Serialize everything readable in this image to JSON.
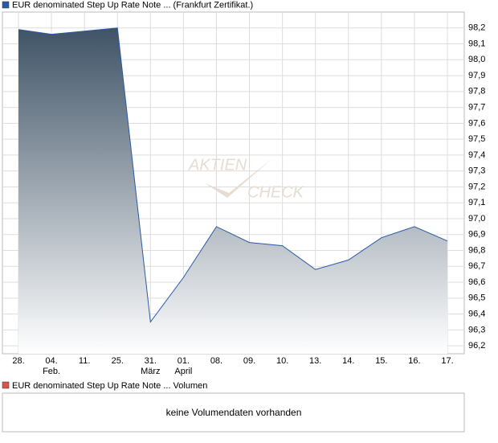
{
  "chart_data": {
    "type": "area",
    "title": "EUR denominated Step Up Rate Note ... (Frankfurt Zertifikat.)",
    "categories": [
      "28.",
      "04.",
      "11.",
      "25.",
      "31.",
      "01.",
      "08.",
      "09.",
      "10.",
      "13.",
      "14.",
      "15.",
      "16.",
      "17."
    ],
    "month_labels": [
      null,
      "Feb.",
      null,
      null,
      "März",
      "April",
      null,
      null,
      null,
      null,
      null,
      null,
      null,
      null
    ],
    "series": [
      {
        "name": "EUR denominated Step Up Rate Note ... (Frankfurt Zertifikat.)",
        "color": "#2a5aa8",
        "values": [
          98.19,
          98.16,
          98.18,
          98.2,
          96.35,
          96.63,
          96.95,
          96.85,
          96.83,
          96.68,
          96.74,
          96.88,
          96.95,
          96.86
        ]
      }
    ],
    "ylim": [
      96.15,
      98.3
    ],
    "yticks": [
      {
        "value": 96.2,
        "label": "96,2"
      },
      {
        "value": 96.3,
        "label": "96,3"
      },
      {
        "value": 96.4,
        "label": "96,4"
      },
      {
        "value": 96.5,
        "label": "96,5"
      },
      {
        "value": 96.6,
        "label": "96,6"
      },
      {
        "value": 96.7,
        "label": "96,7"
      },
      {
        "value": 96.8,
        "label": "96,8"
      },
      {
        "value": 96.9,
        "label": "96,9"
      },
      {
        "value": 97.0,
        "label": "97,0"
      },
      {
        "value": 97.1,
        "label": "97,1"
      },
      {
        "value": 97.2,
        "label": "97,2"
      },
      {
        "value": 97.3,
        "label": "97,3"
      },
      {
        "value": 97.4,
        "label": "97,4"
      },
      {
        "value": 97.5,
        "label": "97,5"
      },
      {
        "value": 97.6,
        "label": "97,6"
      },
      {
        "value": 97.7,
        "label": "97,7"
      },
      {
        "value": 97.8,
        "label": "97,8"
      },
      {
        "value": 97.9,
        "label": "97,9"
      },
      {
        "value": 98.0,
        "label": "98,0"
      },
      {
        "value": 98.1,
        "label": "98,1"
      },
      {
        "value": 98.2,
        "label": "98,2"
      }
    ],
    "grid": true,
    "watermark": [
      "AKTIEN",
      "CHECK"
    ],
    "volume_panel": {
      "legend": "EUR denominated Step Up Rate Note ... Volumen",
      "legend_color": "#d9534f",
      "message": "keine Volumendaten vorhanden"
    }
  }
}
